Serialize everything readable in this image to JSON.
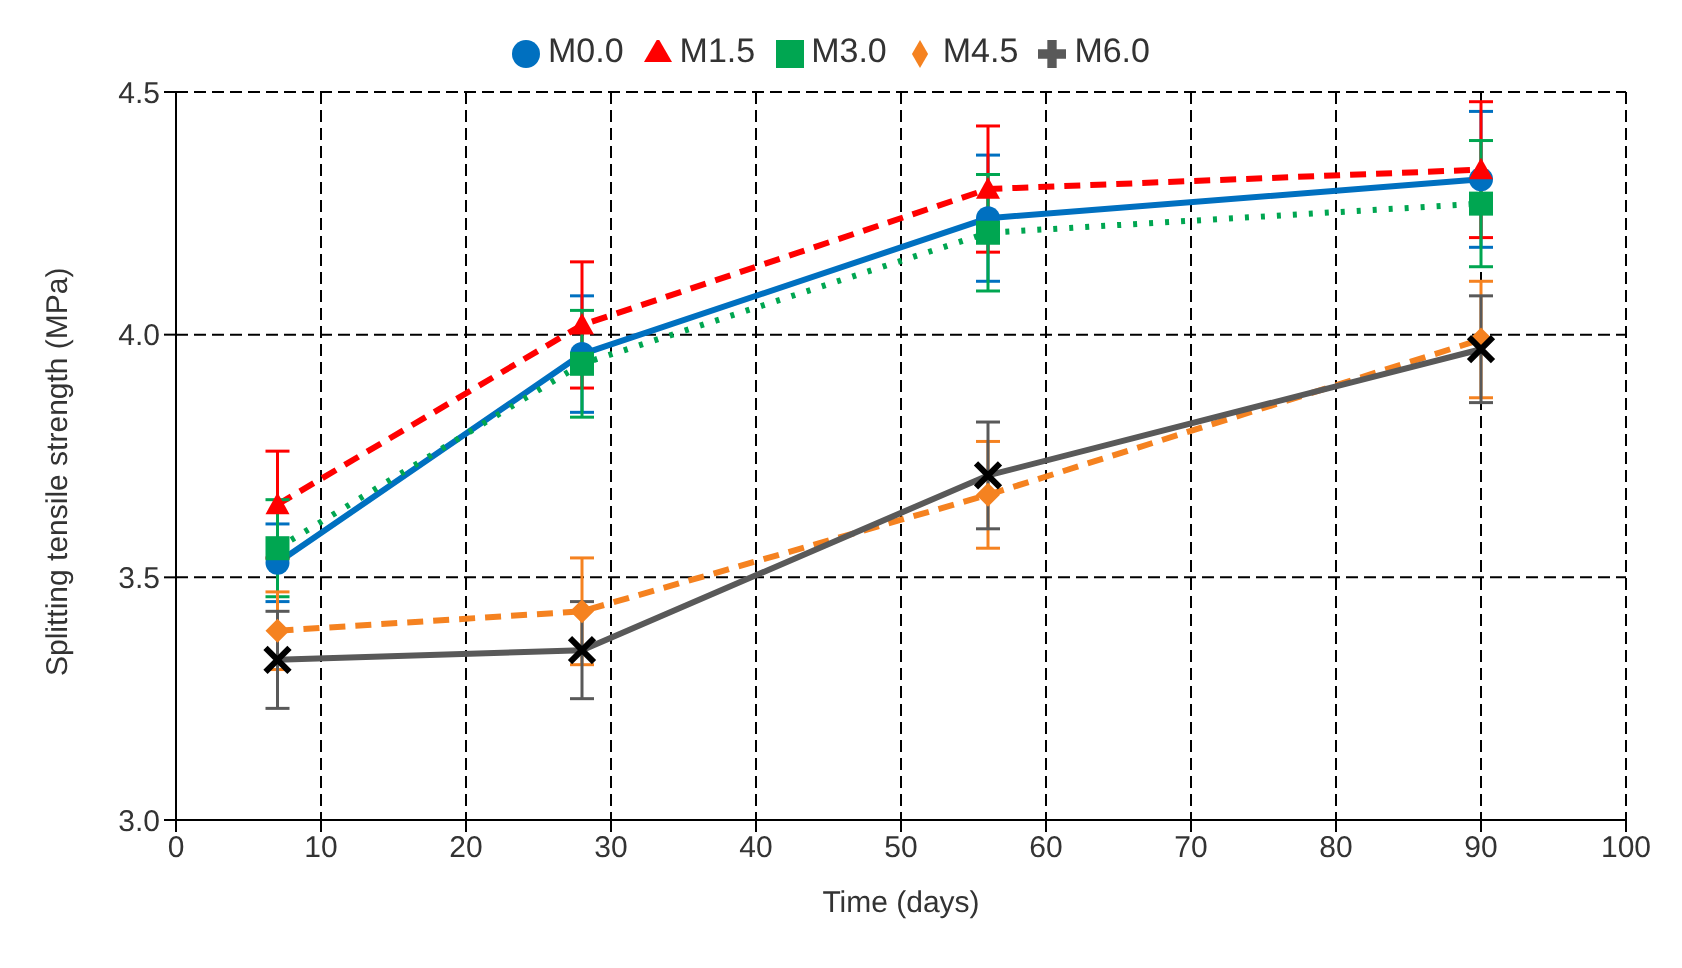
{
  "chart_data": {
    "type": "line",
    "xlabel": "Time (days)",
    "ylabel": "Splitting tensile strength (MPa)",
    "x": [
      7,
      28,
      56,
      90
    ],
    "series": [
      {
        "name": "M0.0",
        "color": "#0070c0",
        "marker": "circle",
        "line_style": "solid",
        "values": [
          3.53,
          3.96,
          4.24,
          4.32
        ],
        "errors": [
          0.08,
          0.12,
          0.13,
          0.14
        ]
      },
      {
        "name": "M1.5",
        "color": "#ff0000",
        "marker": "triangle",
        "line_style": "dashed",
        "values": [
          3.65,
          4.02,
          4.3,
          4.34
        ],
        "errors": [
          0.11,
          0.13,
          0.13,
          0.14
        ]
      },
      {
        "name": "M3.0",
        "color": "#00a651",
        "marker": "square",
        "line_style": "dotted",
        "values": [
          3.56,
          3.94,
          4.21,
          4.27
        ],
        "errors": [
          0.1,
          0.11,
          0.12,
          0.13
        ]
      },
      {
        "name": "M4.5",
        "color": "#f58220",
        "marker": "diamond",
        "line_style": "dashed",
        "values": [
          3.39,
          3.43,
          3.67,
          3.99
        ],
        "errors": [
          0.08,
          0.11,
          0.11,
          0.12
        ]
      },
      {
        "name": "M6.0",
        "color": "#595959",
        "marker": "cross",
        "line_style": "solid",
        "values": [
          3.33,
          3.35,
          3.71,
          3.97
        ],
        "errors": [
          0.1,
          0.1,
          0.11,
          0.11
        ]
      }
    ],
    "xlim": [
      0,
      100
    ],
    "xticks": [
      0,
      10,
      20,
      30,
      40,
      50,
      60,
      70,
      80,
      90,
      100
    ],
    "ylim": [
      3,
      4.5
    ],
    "yticks": [
      {
        "value": 3,
        "label": "3.0"
      },
      {
        "value": 3.5,
        "label": "3.5"
      },
      {
        "value": 4,
        "label": "4.0"
      },
      {
        "value": 4.5,
        "label": "4.5"
      }
    ],
    "grid": true,
    "legend": "top"
  }
}
